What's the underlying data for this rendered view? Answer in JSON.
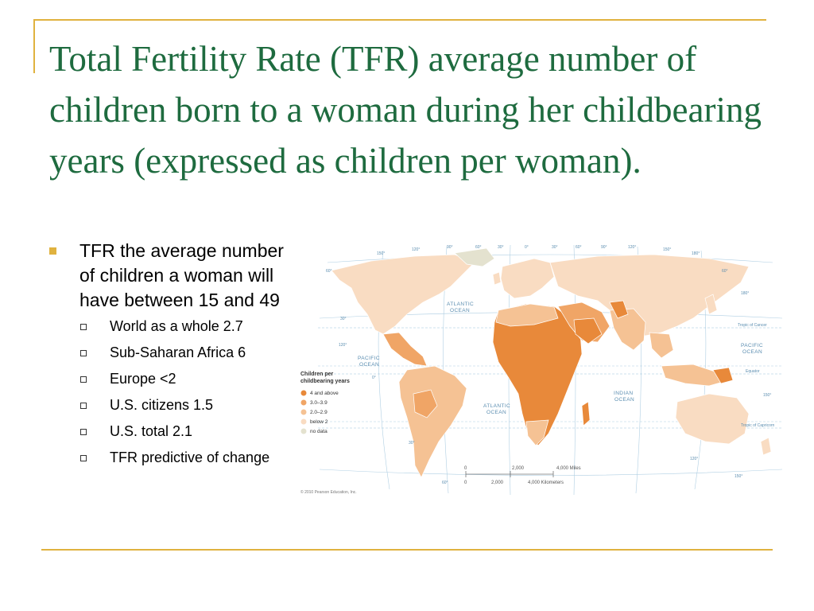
{
  "slide": {
    "title": "Total Fertility Rate (TFR) average number of children born to a woman during her childbearing years (expressed as children per woman).",
    "bullet": "TFR the average number of children a woman will have between 15 and 49",
    "sub_bullets": [
      "World as a whole 2.7",
      "Sub-Saharan Africa 6",
      "Europe <2",
      "U.S. citizens 1.5",
      "U.S. total 2.1",
      "TFR predictive of change"
    ],
    "accent_color": "#e0b23f",
    "title_color": "#1e6b3f"
  },
  "map": {
    "legend_title": [
      "Children per",
      "childbearing years"
    ],
    "legend": [
      {
        "label": "4 and above",
        "color": "#e8893a"
      },
      {
        "label": "3.0–3.9",
        "color": "#f0a566"
      },
      {
        "label": "2.0–2.9",
        "color": "#f5c294"
      },
      {
        "label": "below 2",
        "color": "#f9dcc2"
      },
      {
        "label": "no data",
        "color": "#e4e2cf"
      }
    ],
    "ocean_labels": {
      "atlantic_north": [
        "ATLANTIC",
        "OCEAN"
      ],
      "atlantic_south": [
        "ATLANTIC",
        "OCEAN"
      ],
      "pacific_west": [
        "PACIFIC",
        "OCEAN"
      ],
      "pacific_east": [
        "PACIFIC",
        "OCEAN"
      ],
      "indian": [
        "INDIAN",
        "OCEAN"
      ]
    },
    "line_labels": {
      "cancer": "Tropic of Cancer",
      "equator": "Equator",
      "capricorn": "Tropic of Capricorn"
    },
    "degree_labels": {
      "top": [
        "150°",
        "120°",
        "90°",
        "60°",
        "30°",
        "0°",
        "30°",
        "60°",
        "90°",
        "120°",
        "150°",
        "180°"
      ],
      "lat_left": [
        "60°",
        "30°",
        "120°",
        "0°",
        "30°",
        "60°"
      ],
      "lat_right": [
        "60°",
        "180°",
        "150°",
        "120°",
        "150°"
      ]
    },
    "scale": {
      "miles_ticks": [
        "0",
        "2,000",
        "4,000 Miles"
      ],
      "km_ticks": [
        "0",
        "2,000",
        "4,000 Kilometers"
      ]
    },
    "copyright": "© 2010 Pearson Education, Inc."
  }
}
